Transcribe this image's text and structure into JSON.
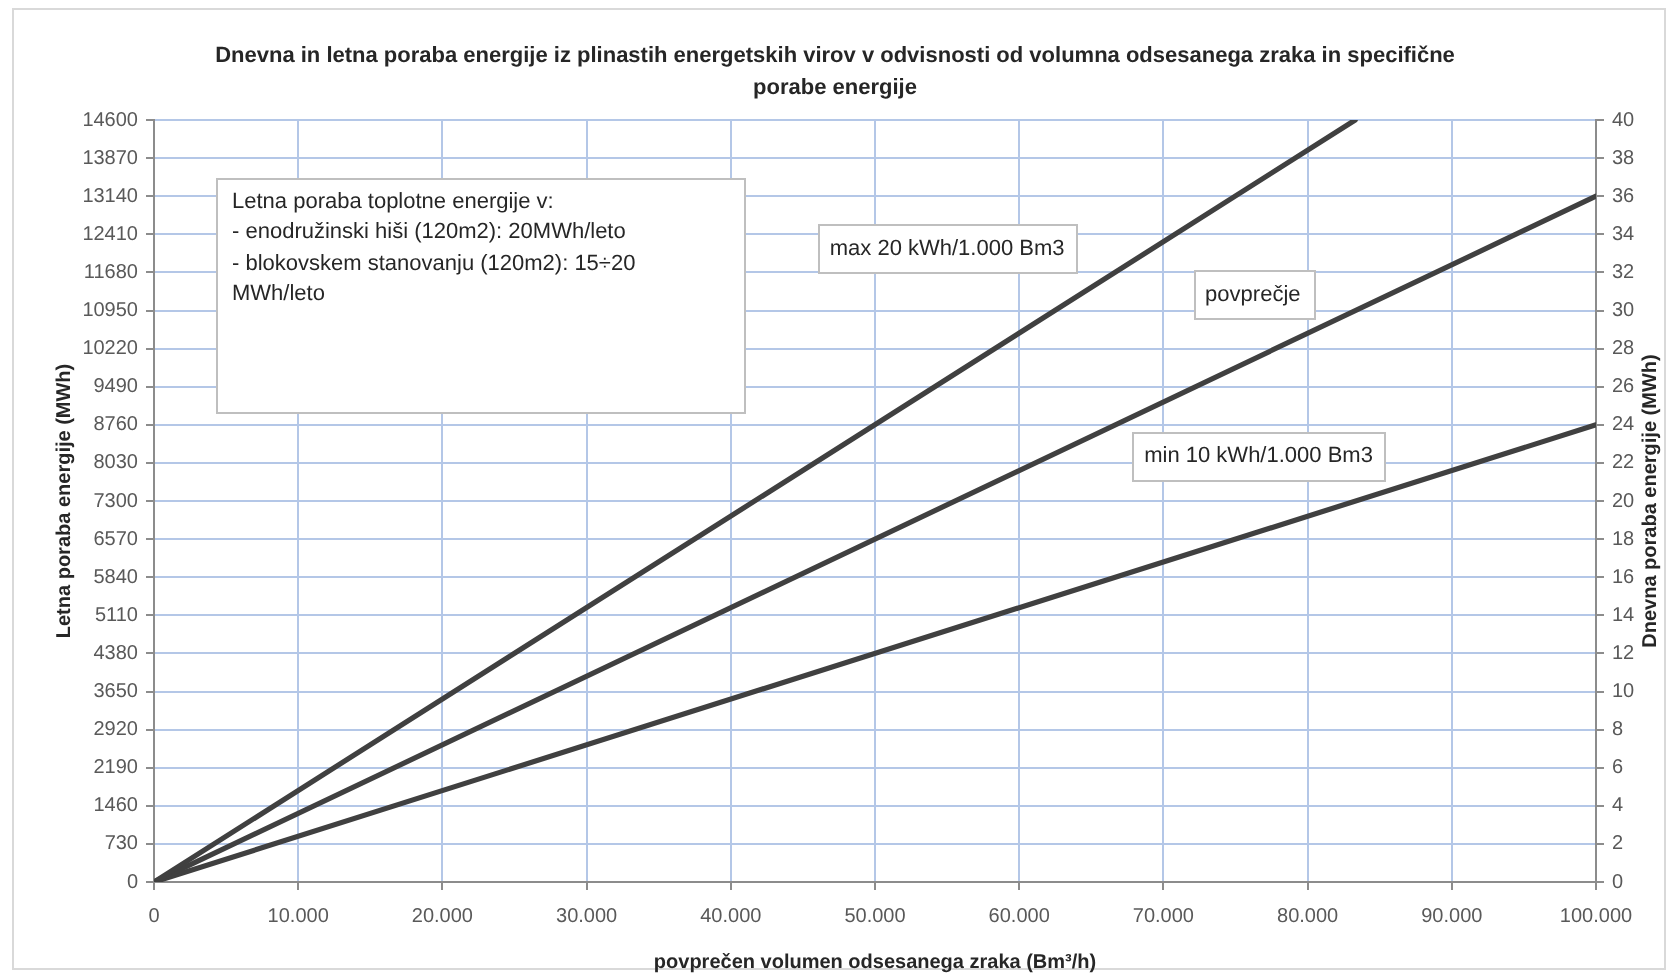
{
  "chart_data": {
    "type": "line",
    "title": "Dnevna in letna poraba energije iz plinastih energetskih virov v odvisnosti od volumna odsesanega zraka in specifične porabe energije",
    "xlabel": "povprečen volumen odsesanega zraka (Bm³/h)",
    "ylabel": "Letna poraba energije (MWh)",
    "y2label": "Dnevna poraba energije (MWh)",
    "annotations": [
      "Letna poraba toplotne energije v:\n- enodružinski hiši (120m2): 20MWh/leto\n- blokovskem stanovanju (120m2): 15÷20 MWh/leto"
    ],
    "series": [
      {
        "name": "max 20 kWh/1.000 Bm3",
        "color": "#404040",
        "x": [
          0,
          83300
        ],
        "values": [
          0,
          14600
        ]
      },
      {
        "name": "povprečje",
        "color": "#404040",
        "x": [
          0,
          100000
        ],
        "values": [
          0,
          13140
        ]
      },
      {
        "name": "min 10 kWh/1.000 Bm3",
        "color": "#404040",
        "x": [
          0,
          100000
        ],
        "values": [
          0,
          8760
        ]
      }
    ],
    "xlim": [
      0,
      100000
    ],
    "xticks": [
      0,
      {
        "value": 10000,
        "label": "10.000"
      },
      {
        "value": 20000,
        "label": "20.000"
      },
      {
        "value": 30000,
        "label": "30.000"
      },
      {
        "value": 40000,
        "label": "40.000"
      },
      {
        "value": 50000,
        "label": "50.000"
      },
      {
        "value": 60000,
        "label": "60.000"
      },
      {
        "value": 70000,
        "label": "70.000"
      },
      {
        "value": 80000,
        "label": "80.000"
      },
      {
        "value": 90000,
        "label": "90.000"
      },
      {
        "value": 100000,
        "label": "100.000"
      }
    ],
    "ylim": [
      0,
      14600
    ],
    "yticks": [
      0,
      730,
      1460,
      2190,
      2920,
      3650,
      4380,
      5110,
      5840,
      6570,
      7300,
      8030,
      8760,
      9490,
      10220,
      10950,
      11680,
      12410,
      13140,
      13870,
      14600
    ],
    "y2lim": [
      0,
      40
    ],
    "y2ticks": [
      0,
      2,
      4,
      6,
      8,
      10,
      12,
      14,
      16,
      18,
      20,
      22,
      24,
      26,
      28,
      30,
      32,
      34,
      36,
      38,
      40
    ],
    "grid": true,
    "legend": false,
    "marker": "none"
  }
}
